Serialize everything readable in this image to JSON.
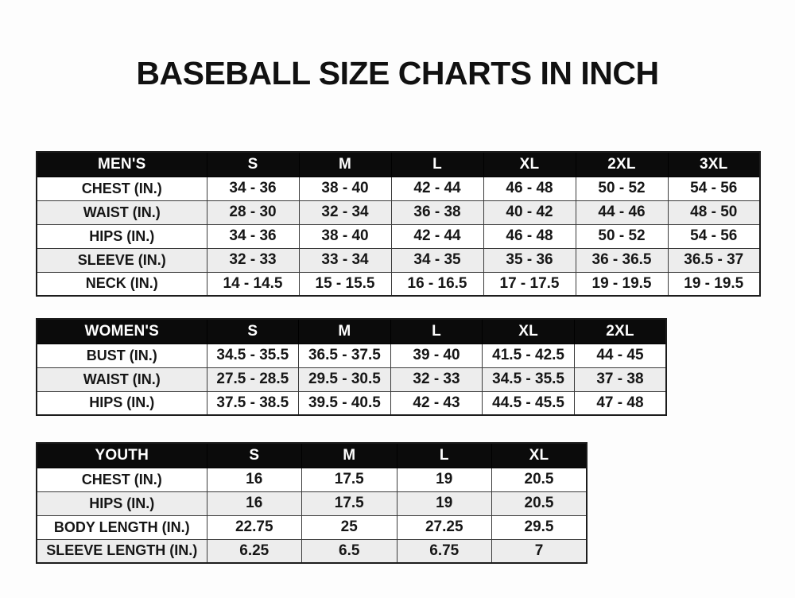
{
  "title": "BASEBALL SIZE CHARTS IN INCH",
  "colors": {
    "header_bg": "#0b0b0b",
    "header_text": "#ffffff",
    "row_alt": "#ededed",
    "border": "#3a3a3a",
    "text": "#161616",
    "page_bg": "#fdfdfd"
  },
  "chart_data": [
    {
      "type": "table",
      "name": "mens",
      "header": [
        "MEN'S",
        "S",
        "M",
        "L",
        "XL",
        "2XL",
        "3XL"
      ],
      "rows": [
        [
          "CHEST (IN.)",
          "34 - 36",
          "38 - 40",
          "42 - 44",
          "46 - 48",
          "50 - 52",
          "54 - 56"
        ],
        [
          "WAIST (IN.)",
          "28 - 30",
          "32 - 34",
          "36 - 38",
          "40 - 42",
          "44 - 46",
          "48 - 50"
        ],
        [
          "HIPS (IN.)",
          "34 - 36",
          "38 - 40",
          "42 - 44",
          "46 - 48",
          "50 - 52",
          "54 - 56"
        ],
        [
          "SLEEVE (IN.)",
          "32 - 33",
          "33 - 34",
          "34 - 35",
          "35 - 36",
          "36 - 36.5",
          "36.5 - 37"
        ],
        [
          "NECK (IN.)",
          "14 - 14.5",
          "15 - 15.5",
          "16 - 16.5",
          "17 - 17.5",
          "19 - 19.5",
          "19 - 19.5"
        ]
      ]
    },
    {
      "type": "table",
      "name": "womens",
      "header": [
        "WOMEN'S",
        "S",
        "M",
        "L",
        "XL",
        "2XL"
      ],
      "rows": [
        [
          "BUST (IN.)",
          "34.5 - 35.5",
          "36.5 - 37.5",
          "39 - 40",
          "41.5 - 42.5",
          "44 - 45"
        ],
        [
          "WAIST (IN.)",
          "27.5 - 28.5",
          "29.5 - 30.5",
          "32 - 33",
          "34.5 - 35.5",
          "37 - 38"
        ],
        [
          "HIPS (IN.)",
          "37.5 - 38.5",
          "39.5 - 40.5",
          "42 - 43",
          "44.5 - 45.5",
          "47 - 48"
        ]
      ]
    },
    {
      "type": "table",
      "name": "youth",
      "header": [
        "YOUTH",
        "S",
        "M",
        "L",
        "XL"
      ],
      "rows": [
        [
          "CHEST (IN.)",
          "16",
          "17.5",
          "19",
          "20.5"
        ],
        [
          "HIPS (IN.)",
          "16",
          "17.5",
          "19",
          "20.5"
        ],
        [
          "BODY LENGTH (IN.)",
          "22.75",
          "25",
          "27.25",
          "29.5"
        ],
        [
          "SLEEVE LENGTH (IN.)",
          "6.25",
          "6.5",
          "6.75",
          "7"
        ]
      ]
    }
  ]
}
